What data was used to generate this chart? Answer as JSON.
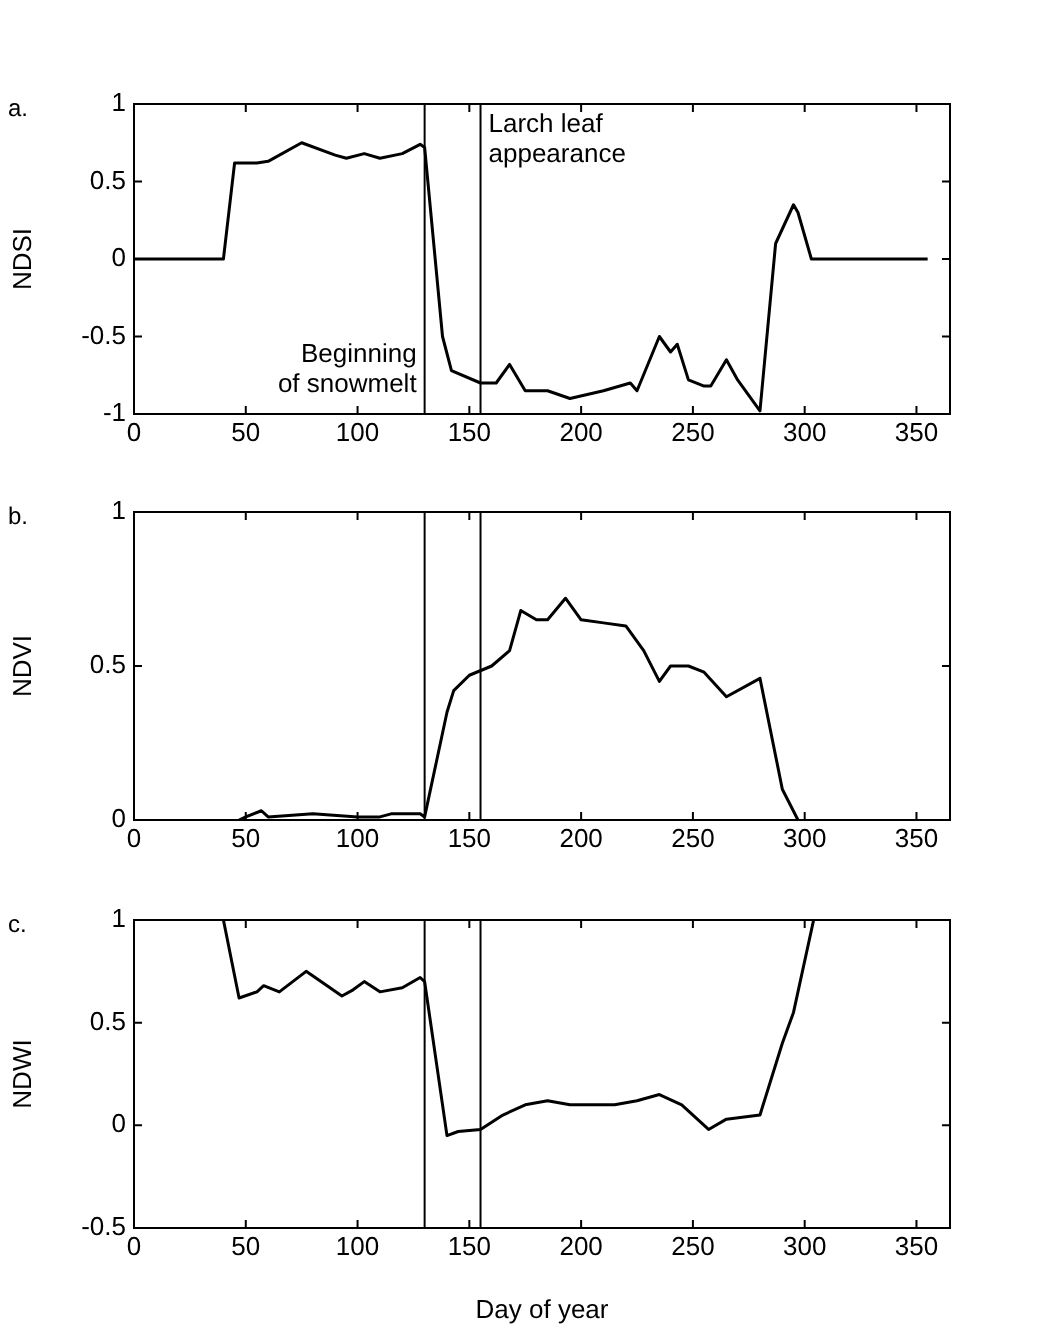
{
  "chart_data": [
    {
      "type": "line",
      "title": "a.",
      "ylabel": "NDSI",
      "xlim": [
        0,
        365
      ],
      "xticks": [
        0,
        50,
        100,
        150,
        200,
        250,
        300,
        350
      ],
      "ylim": [
        -1,
        1
      ],
      "yticks": [
        -1,
        -0.5,
        0,
        0.5,
        1
      ],
      "grid": false,
      "marker": "none",
      "line_style": "solid",
      "x": [
        0,
        40,
        45,
        55,
        60,
        75,
        90,
        95,
        103,
        110,
        120,
        128,
        130,
        138,
        142,
        155,
        162,
        168,
        175,
        185,
        195,
        210,
        222,
        225,
        235,
        240,
        243,
        248,
        255,
        258,
        265,
        270,
        280,
        287,
        295,
        297,
        303,
        355
      ],
      "series": [
        {
          "color": "#000000",
          "values": [
            0,
            0,
            0.62,
            0.62,
            0.63,
            0.75,
            0.67,
            0.65,
            0.68,
            0.65,
            0.68,
            0.74,
            0.72,
            -0.5,
            -0.72,
            -0.8,
            -0.8,
            -0.68,
            -0.85,
            -0.85,
            -0.9,
            -0.85,
            -0.8,
            -0.85,
            -0.5,
            -0.6,
            -0.55,
            -0.78,
            -0.82,
            -0.82,
            -0.65,
            -0.78,
            -0.98,
            0.1,
            0.35,
            0.3,
            0,
            0
          ]
        }
      ],
      "ref_lines": [
        {
          "axis": "x",
          "value": 130,
          "label": "Beginning\nof snowmelt",
          "color": "#000000"
        },
        {
          "axis": "x",
          "value": 155,
          "label": "Larch leaf\nappearance",
          "color": "#000000"
        }
      ]
    },
    {
      "type": "line",
      "title": "b.",
      "ylabel": "NDVI",
      "xlim": [
        0,
        365
      ],
      "xticks": [
        0,
        50,
        100,
        150,
        200,
        250,
        300,
        350
      ],
      "ylim": [
        0,
        1
      ],
      "yticks": [
        0,
        0.5,
        1
      ],
      "grid": false,
      "marker": "none",
      "line_style": "solid",
      "x": [
        47,
        50,
        57,
        60,
        80,
        100,
        110,
        115,
        128,
        130,
        140,
        143,
        150,
        160,
        168,
        173,
        180,
        185,
        193,
        200,
        210,
        220,
        228,
        235,
        240,
        248,
        255,
        265,
        280,
        290,
        297
      ],
      "series": [
        {
          "color": "#000000",
          "values": [
            0,
            0.01,
            0.03,
            0.01,
            0.02,
            0.01,
            0.01,
            0.02,
            0.02,
            0.01,
            0.35,
            0.42,
            0.47,
            0.5,
            0.55,
            0.68,
            0.65,
            0.65,
            0.72,
            0.65,
            0.64,
            0.63,
            0.55,
            0.45,
            0.5,
            0.5,
            0.48,
            0.4,
            0.46,
            0.1,
            0
          ]
        }
      ],
      "ref_lines": [
        {
          "axis": "x",
          "value": 130,
          "color": "#000000"
        },
        {
          "axis": "x",
          "value": 155,
          "color": "#000000"
        }
      ]
    },
    {
      "type": "line",
      "title": "c.",
      "xlabel": "Day of year",
      "ylabel": "NDWI",
      "xlim": [
        0,
        365
      ],
      "xticks": [
        0,
        50,
        100,
        150,
        200,
        250,
        300,
        350
      ],
      "ylim": [
        -0.5,
        1
      ],
      "yticks": [
        -0.5,
        0,
        0.5,
        1
      ],
      "grid": false,
      "marker": "none",
      "line_style": "solid",
      "x": [
        40,
        47,
        55,
        58,
        65,
        77,
        93,
        98,
        103,
        110,
        120,
        128,
        130,
        140,
        145,
        155,
        165,
        175,
        185,
        195,
        215,
        225,
        235,
        245,
        257,
        265,
        280,
        290,
        295,
        304
      ],
      "series": [
        {
          "color": "#000000",
          "values": [
            1,
            0.62,
            0.65,
            0.68,
            0.65,
            0.75,
            0.63,
            0.66,
            0.7,
            0.65,
            0.67,
            0.72,
            0.7,
            -0.05,
            -0.03,
            -0.02,
            0.05,
            0.1,
            0.12,
            0.1,
            0.1,
            0.12,
            0.15,
            0.1,
            -0.02,
            0.03,
            0.05,
            0.4,
            0.55,
            1
          ]
        }
      ],
      "ref_lines": [
        {
          "axis": "x",
          "value": 130,
          "color": "#000000"
        },
        {
          "axis": "x",
          "value": 155,
          "color": "#000000"
        }
      ]
    }
  ]
}
